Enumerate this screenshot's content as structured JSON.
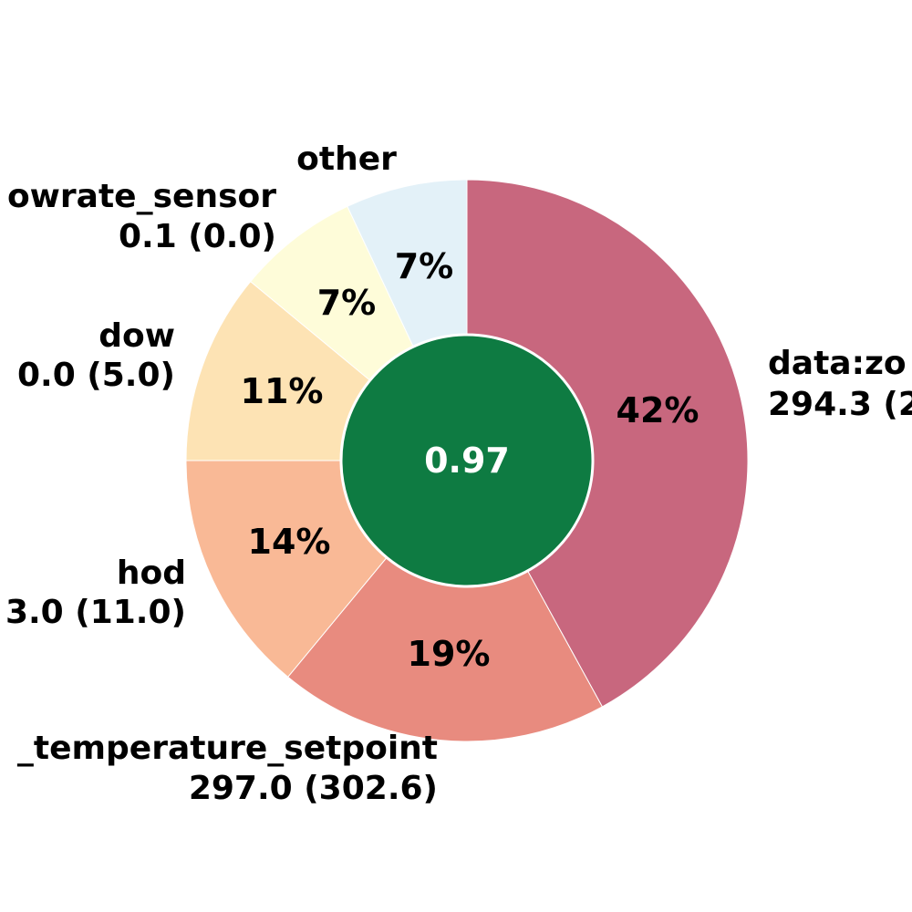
{
  "chart_data": {
    "type": "pie",
    "style": "donut",
    "center_value": "0.97",
    "center_color": "#0e7b42",
    "slices": [
      {
        "label": "data:zo",
        "value_text": "294.3 (2",
        "percent": 42,
        "percent_text": "42%",
        "color": "#c8677e"
      },
      {
        "label": "_temperature_setpoint",
        "value_text": "297.0 (302.6)",
        "percent": 19,
        "percent_text": "19%",
        "color": "#e88b7f"
      },
      {
        "label": "hod",
        "value_text": "3.0 (11.0)",
        "percent": 14,
        "percent_text": "14%",
        "color": "#f9b996"
      },
      {
        "label": "dow",
        "value_text": "0.0 (5.0)",
        "percent": 11,
        "percent_text": "11%",
        "color": "#fde3b4"
      },
      {
        "label": "owrate_sensor",
        "value_text": "0.1 (0.0)",
        "percent": 7,
        "percent_text": "7%",
        "color": "#fefcd9"
      },
      {
        "label": "other",
        "value_text": "",
        "percent": 7,
        "percent_text": "7%",
        "color": "#e3f1f8"
      }
    ]
  }
}
